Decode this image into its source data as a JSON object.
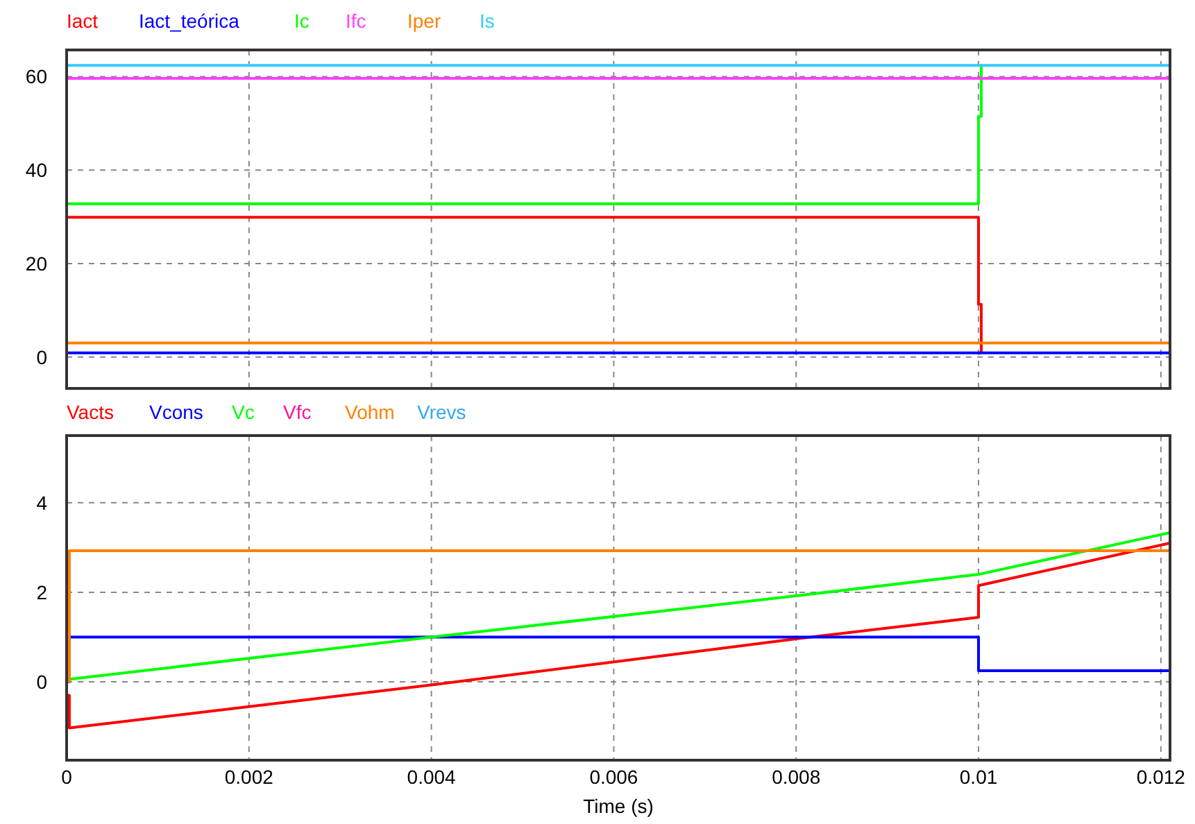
{
  "chart_data": [
    {
      "type": "line",
      "xlim": [
        0,
        0.0121
      ],
      "xticks": [
        0,
        0.002,
        0.004,
        0.006,
        0.008,
        0.01,
        0.012
      ],
      "ylim": [
        -6.7,
        65.7
      ],
      "yticks": [
        0,
        20,
        40,
        60
      ],
      "grid": true,
      "legend": "top",
      "tick_labels": "y",
      "marker": "none",
      "line_style": "solid",
      "series": [
        {
          "name": "Iact",
          "color": "#ff0000",
          "x": [
            0,
            0.01,
            0.01,
            0.01003,
            0.01003
          ],
          "values": [
            29.9,
            29.9,
            11.3,
            11.3,
            0.9
          ]
        },
        {
          "name": "Iact_teórica",
          "color": "#0000ff",
          "x": [
            0,
            0.0121
          ],
          "values": [
            0.9,
            0.9
          ]
        },
        {
          "name": "Ic",
          "color": "#00ff00",
          "x": [
            0,
            0.01,
            0.01,
            0.01003,
            0.01003
          ],
          "values": [
            32.8,
            32.8,
            51.5,
            51.5,
            62.4
          ]
        },
        {
          "name": "Ifc",
          "color": "#ff40ff",
          "x": [
            0,
            0.0121
          ],
          "values": [
            59.6,
            59.6
          ]
        },
        {
          "name": "Iper",
          "color": "#ff8000",
          "x": [
            0,
            0.0121
          ],
          "values": [
            3.0,
            3.0
          ]
        },
        {
          "name": "Is",
          "color": "#33ccff",
          "x": [
            0,
            0.0121
          ],
          "values": [
            62.4,
            62.4
          ]
        }
      ]
    },
    {
      "type": "line",
      "xlim": [
        0,
        0.0121
      ],
      "xticks": [
        0,
        0.002,
        0.004,
        0.006,
        0.008,
        0.01,
        0.012
      ],
      "ylim": [
        -1.75,
        5.5
      ],
      "yticks": [
        0,
        2,
        4
      ],
      "grid": true,
      "legend": "top",
      "xlabel": "Time (s)",
      "marker": "none",
      "line_style": "solid",
      "series": [
        {
          "name": "Vacts",
          "color": "#ff0000",
          "x": [
            0,
            3e-05,
            3e-05,
            0.004,
            0.008,
            0.01,
            0.01,
            0.0121
          ],
          "values": [
            -0.3,
            -0.3,
            -1.03,
            -0.07,
            0.96,
            1.44,
            2.15,
            3.1
          ]
        },
        {
          "name": "Vcons",
          "color": "#0000ff",
          "x": [
            0,
            3e-05,
            3e-05,
            0.01,
            0.01,
            0.0121
          ],
          "values": [
            0,
            0,
            1.0,
            1.0,
            0.25,
            0.25
          ]
        },
        {
          "name": "Vc",
          "color": "#00ff00",
          "x": [
            0,
            0.004,
            0.008,
            0.01,
            0.0121
          ],
          "values": [
            0.05,
            1.0,
            1.92,
            2.4,
            3.33
          ]
        },
        {
          "name": "Vfc",
          "color": "#ff1493"
        },
        {
          "name": "Vohm",
          "color": "#ff8000",
          "x": [
            3e-05,
            3e-05,
            0.0121
          ],
          "values": [
            0,
            2.93,
            2.93
          ]
        },
        {
          "name": "Vrevs",
          "color": "#33aaee"
        }
      ]
    }
  ]
}
